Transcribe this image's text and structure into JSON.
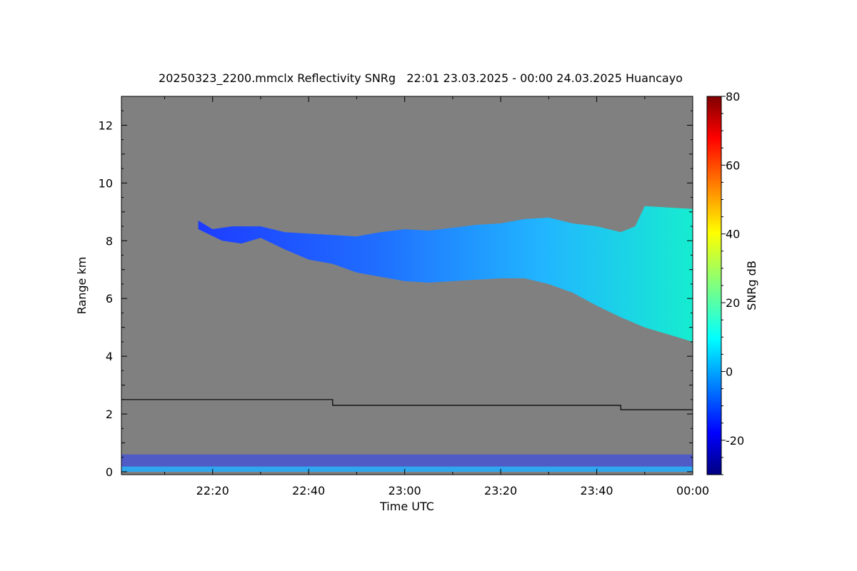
{
  "chart_data": {
    "type": "heatmap",
    "title": "20250323_2200.mmclx Reflectivity SNRg   22:01 23.03.2025 - 00:00 24.03.2025 Huancayo",
    "xlabel": "Time UTC",
    "ylabel": "Range km",
    "colorbar_label": "SNRg dB",
    "background_color": "#808080",
    "x_range": [
      "22:01",
      "00:00"
    ],
    "xlim_minutes_after_22_00": [
      1,
      120
    ],
    "x_ticks": [
      {
        "label": "22:20",
        "minutes": 20
      },
      {
        "label": "22:40",
        "minutes": 40
      },
      {
        "label": "23:00",
        "minutes": 60
      },
      {
        "label": "23:20",
        "minutes": 80
      },
      {
        "label": "23:40",
        "minutes": 100
      },
      {
        "label": "00:00",
        "minutes": 120
      }
    ],
    "ylim": [
      -0.1,
      13
    ],
    "y_ticks": [
      0,
      2,
      4,
      6,
      8,
      10,
      12
    ],
    "y_tick_labels": [
      "0",
      "2",
      "4",
      "6",
      "8",
      "10",
      "12"
    ],
    "colorbar": {
      "range": [
        -30,
        80
      ],
      "ticks": [
        -20,
        0,
        20,
        40,
        60,
        80
      ],
      "tick_labels": [
        "-20",
        "0",
        "20",
        "40",
        "60",
        "80"
      ],
      "colormap": "jet"
    },
    "cloud_layer": {
      "top_km": [
        [
          17,
          8.7
        ],
        [
          20,
          8.4
        ],
        [
          24,
          8.5
        ],
        [
          30,
          8.5
        ],
        [
          35,
          8.3
        ],
        [
          40,
          8.25
        ],
        [
          45,
          8.2
        ],
        [
          50,
          8.15
        ],
        [
          55,
          8.3
        ],
        [
          60,
          8.4
        ],
        [
          65,
          8.35
        ],
        [
          70,
          8.45
        ],
        [
          75,
          8.55
        ],
        [
          80,
          8.6
        ],
        [
          85,
          8.75
        ],
        [
          90,
          8.8
        ],
        [
          95,
          8.6
        ],
        [
          100,
          8.5
        ],
        [
          105,
          8.3
        ],
        [
          108,
          8.5
        ],
        [
          110,
          9.2
        ],
        [
          120,
          9.1
        ]
      ],
      "base_km": [
        [
          17,
          8.4
        ],
        [
          22,
          8.0
        ],
        [
          26,
          7.9
        ],
        [
          30,
          8.1
        ],
        [
          35,
          7.7
        ],
        [
          40,
          7.35
        ],
        [
          45,
          7.2
        ],
        [
          50,
          6.9
        ],
        [
          55,
          6.75
        ],
        [
          60,
          6.6
        ],
        [
          65,
          6.55
        ],
        [
          70,
          6.6
        ],
        [
          75,
          6.65
        ],
        [
          80,
          6.7
        ],
        [
          85,
          6.7
        ],
        [
          90,
          6.5
        ],
        [
          95,
          6.2
        ],
        [
          100,
          5.75
        ],
        [
          105,
          5.35
        ],
        [
          110,
          5.0
        ],
        [
          115,
          4.75
        ],
        [
          120,
          4.5
        ]
      ],
      "snr_db_range": [
        -20,
        10
      ]
    },
    "boundary_line_km": [
      {
        "from": 1,
        "to": 45,
        "value": 2.5
      },
      {
        "from": 45,
        "to": 105,
        "value": 2.3
      },
      {
        "from": 105,
        "to": 120,
        "value": 2.15
      }
    ],
    "near_ground_echo_km": [
      0,
      0.6
    ]
  }
}
